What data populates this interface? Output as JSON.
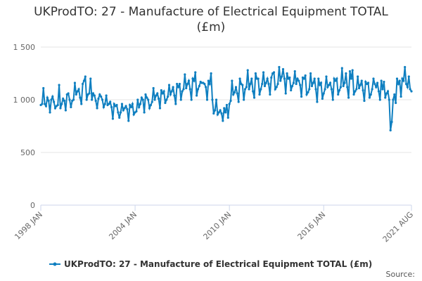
{
  "chart_data": {
    "type": "line",
    "title": "UKProdTO: 27 - Manufacture of Electrical Equipment TOTAL (£m)",
    "source": "Source:",
    "categories": [
      "1998 JAN",
      null,
      null,
      null,
      null,
      null,
      null,
      null,
      null,
      null,
      null,
      null,
      null,
      null,
      null,
      null,
      null,
      null,
      null,
      null,
      null,
      null,
      null,
      null,
      null,
      null,
      null,
      null,
      null,
      null,
      null,
      null,
      null,
      null,
      null,
      null,
      null,
      null,
      null,
      null,
      null,
      null,
      null,
      null,
      null,
      null,
      null,
      null,
      null,
      null,
      null,
      null,
      null,
      null,
      null,
      null,
      null,
      null,
      null,
      null,
      null,
      null,
      null,
      null,
      null,
      null,
      null,
      null,
      null,
      null,
      null,
      null,
      "2004 JAN",
      null,
      null,
      null,
      null,
      null,
      null,
      null,
      null,
      null,
      null,
      null,
      null,
      null,
      null,
      null,
      null,
      null,
      null,
      null,
      null,
      null,
      null,
      null,
      null,
      null,
      null,
      null,
      null,
      null,
      null,
      null,
      null,
      null,
      null,
      null,
      null,
      null,
      null,
      null,
      null,
      null,
      null,
      null,
      null,
      null,
      null,
      null,
      null,
      null,
      null,
      null,
      null,
      null,
      null,
      null,
      null,
      null,
      null,
      null,
      null,
      null,
      null,
      null,
      null,
      null,
      null,
      null,
      null,
      null,
      null,
      null,
      "2010 JAN",
      null,
      null,
      null,
      null,
      null,
      null,
      null,
      null,
      null,
      null,
      null,
      null,
      null,
      null,
      null,
      null,
      null,
      null,
      null,
      null,
      null,
      null,
      null,
      null,
      null,
      null,
      null,
      null,
      null,
      null,
      null,
      null,
      null,
      null,
      null,
      null,
      null,
      null,
      null,
      null,
      null,
      null,
      null,
      null,
      null,
      null,
      null,
      null,
      null,
      null,
      null,
      null,
      null,
      null,
      null,
      null,
      null,
      null,
      null,
      null,
      null,
      null,
      null,
      null,
      null,
      null,
      null,
      null,
      null,
      null,
      null,
      "2016 JAN",
      null,
      null,
      null,
      null,
      null,
      null,
      null,
      null,
      null,
      null,
      null,
      null,
      null,
      null,
      null,
      null,
      null,
      null,
      null,
      null,
      null,
      null,
      null,
      null,
      null,
      null,
      null,
      null,
      null,
      null,
      null,
      null,
      null,
      null,
      null,
      null,
      null,
      null,
      null,
      null,
      null,
      null,
      null,
      null,
      null,
      null,
      null,
      null,
      null,
      null,
      null,
      null,
      null,
      null,
      null,
      null,
      null,
      null,
      null,
      null,
      null,
      null,
      null,
      null,
      null,
      null,
      "2021 AUG"
    ],
    "series": [
      {
        "name": "UKProdTO: 27 - Manufacture of Electrical Equipment TOTAL (£m)",
        "color": "#0f7fc0",
        "values": [
          950,
          960,
          1110,
          960,
          940,
          1020,
          990,
          880,
          1000,
          1030,
          980,
          920,
          940,
          950,
          1140,
          920,
          960,
          1010,
          990,
          900,
          1050,
          1060,
          1000,
          930,
          990,
          1000,
          1160,
          1050,
          1080,
          1100,
          1020,
          960,
          1150,
          1180,
          1220,
          1000,
          1050,
          1060,
          1200,
          1000,
          1060,
          1040,
          990,
          920,
          1010,
          1050,
          1030,
          1000,
          930,
          960,
          1040,
          950,
          960,
          980,
          930,
          820,
          960,
          940,
          950,
          880,
          830,
          880,
          960,
          900,
          920,
          940,
          910,
          800,
          950,
          930,
          960,
          860,
          880,
          890,
          1000,
          930,
          960,
          1020,
          1000,
          880,
          1050,
          1020,
          1000,
          920,
          950,
          980,
          1110,
          1000,
          1040,
          1060,
          1010,
          920,
          1090,
          1060,
          1080,
          970,
          1000,
          1030,
          1140,
          1050,
          1080,
          1120,
          1040,
          960,
          1150,
          1120,
          1150,
          1000,
          1080,
          1100,
          1240,
          1110,
          1150,
          1180,
          1100,
          1000,
          1200,
          1180,
          1260,
          1040,
          1100,
          1130,
          1170,
          1160,
          1160,
          1150,
          1120,
          1000,
          1180,
          1150,
          1250,
          1000,
          870,
          900,
          1000,
          860,
          880,
          900,
          870,
          800,
          920,
          880,
          950,
          830,
          960,
          990,
          1180,
          1050,
          1070,
          1120,
          1060,
          980,
          1200,
          1150,
          1140,
          1000,
          1100,
          1120,
          1280,
          1100,
          1150,
          1200,
          1080,
          1020,
          1250,
          1200,
          1200,
          1050,
          1100,
          1150,
          1260,
          1130,
          1160,
          1200,
          1150,
          1050,
          1210,
          1250,
          1260,
          1100,
          1120,
          1150,
          1310,
          1180,
          1220,
          1290,
          1200,
          1060,
          1250,
          1200,
          1210,
          1090,
          1130,
          1160,
          1270,
          1150,
          1200,
          1180,
          1140,
          1030,
          1210,
          1200,
          1230,
          1050,
          1070,
          1100,
          1250,
          1130,
          1160,
          1200,
          1100,
          980,
          1200,
          1140,
          1160,
          1010,
          1060,
          1100,
          1220,
          1120,
          1140,
          1160,
          1100,
          1000,
          1200,
          1180,
          1200,
          1050,
          1090,
          1120,
          1300,
          1130,
          1160,
          1250,
          1120,
          1020,
          1270,
          1200,
          1280,
          1050,
          1080,
          1100,
          1220,
          1110,
          1140,
          1180,
          1090,
          990,
          1170,
          1150,
          1160,
          1020,
          1050,
          1100,
          1200,
          1150,
          1120,
          1160,
          1080,
          1000,
          1180,
          1100,
          1170,
          1020,
          1060,
          1080,
          1000,
          710,
          790,
          1000,
          1050,
          970,
          1200,
          1150,
          1180,
          1030,
          1200,
          1180,
          1310,
          1150,
          1120,
          1220,
          1100,
          1080
        ]
      }
    ],
    "ylim": [
      0,
      1500
    ],
    "yticks": [
      0,
      500,
      {
        "value": 1000,
        "label": "1 000"
      },
      {
        "value": 1500,
        "label": "1 500"
      }
    ],
    "grid": true,
    "legend": "bottom"
  }
}
